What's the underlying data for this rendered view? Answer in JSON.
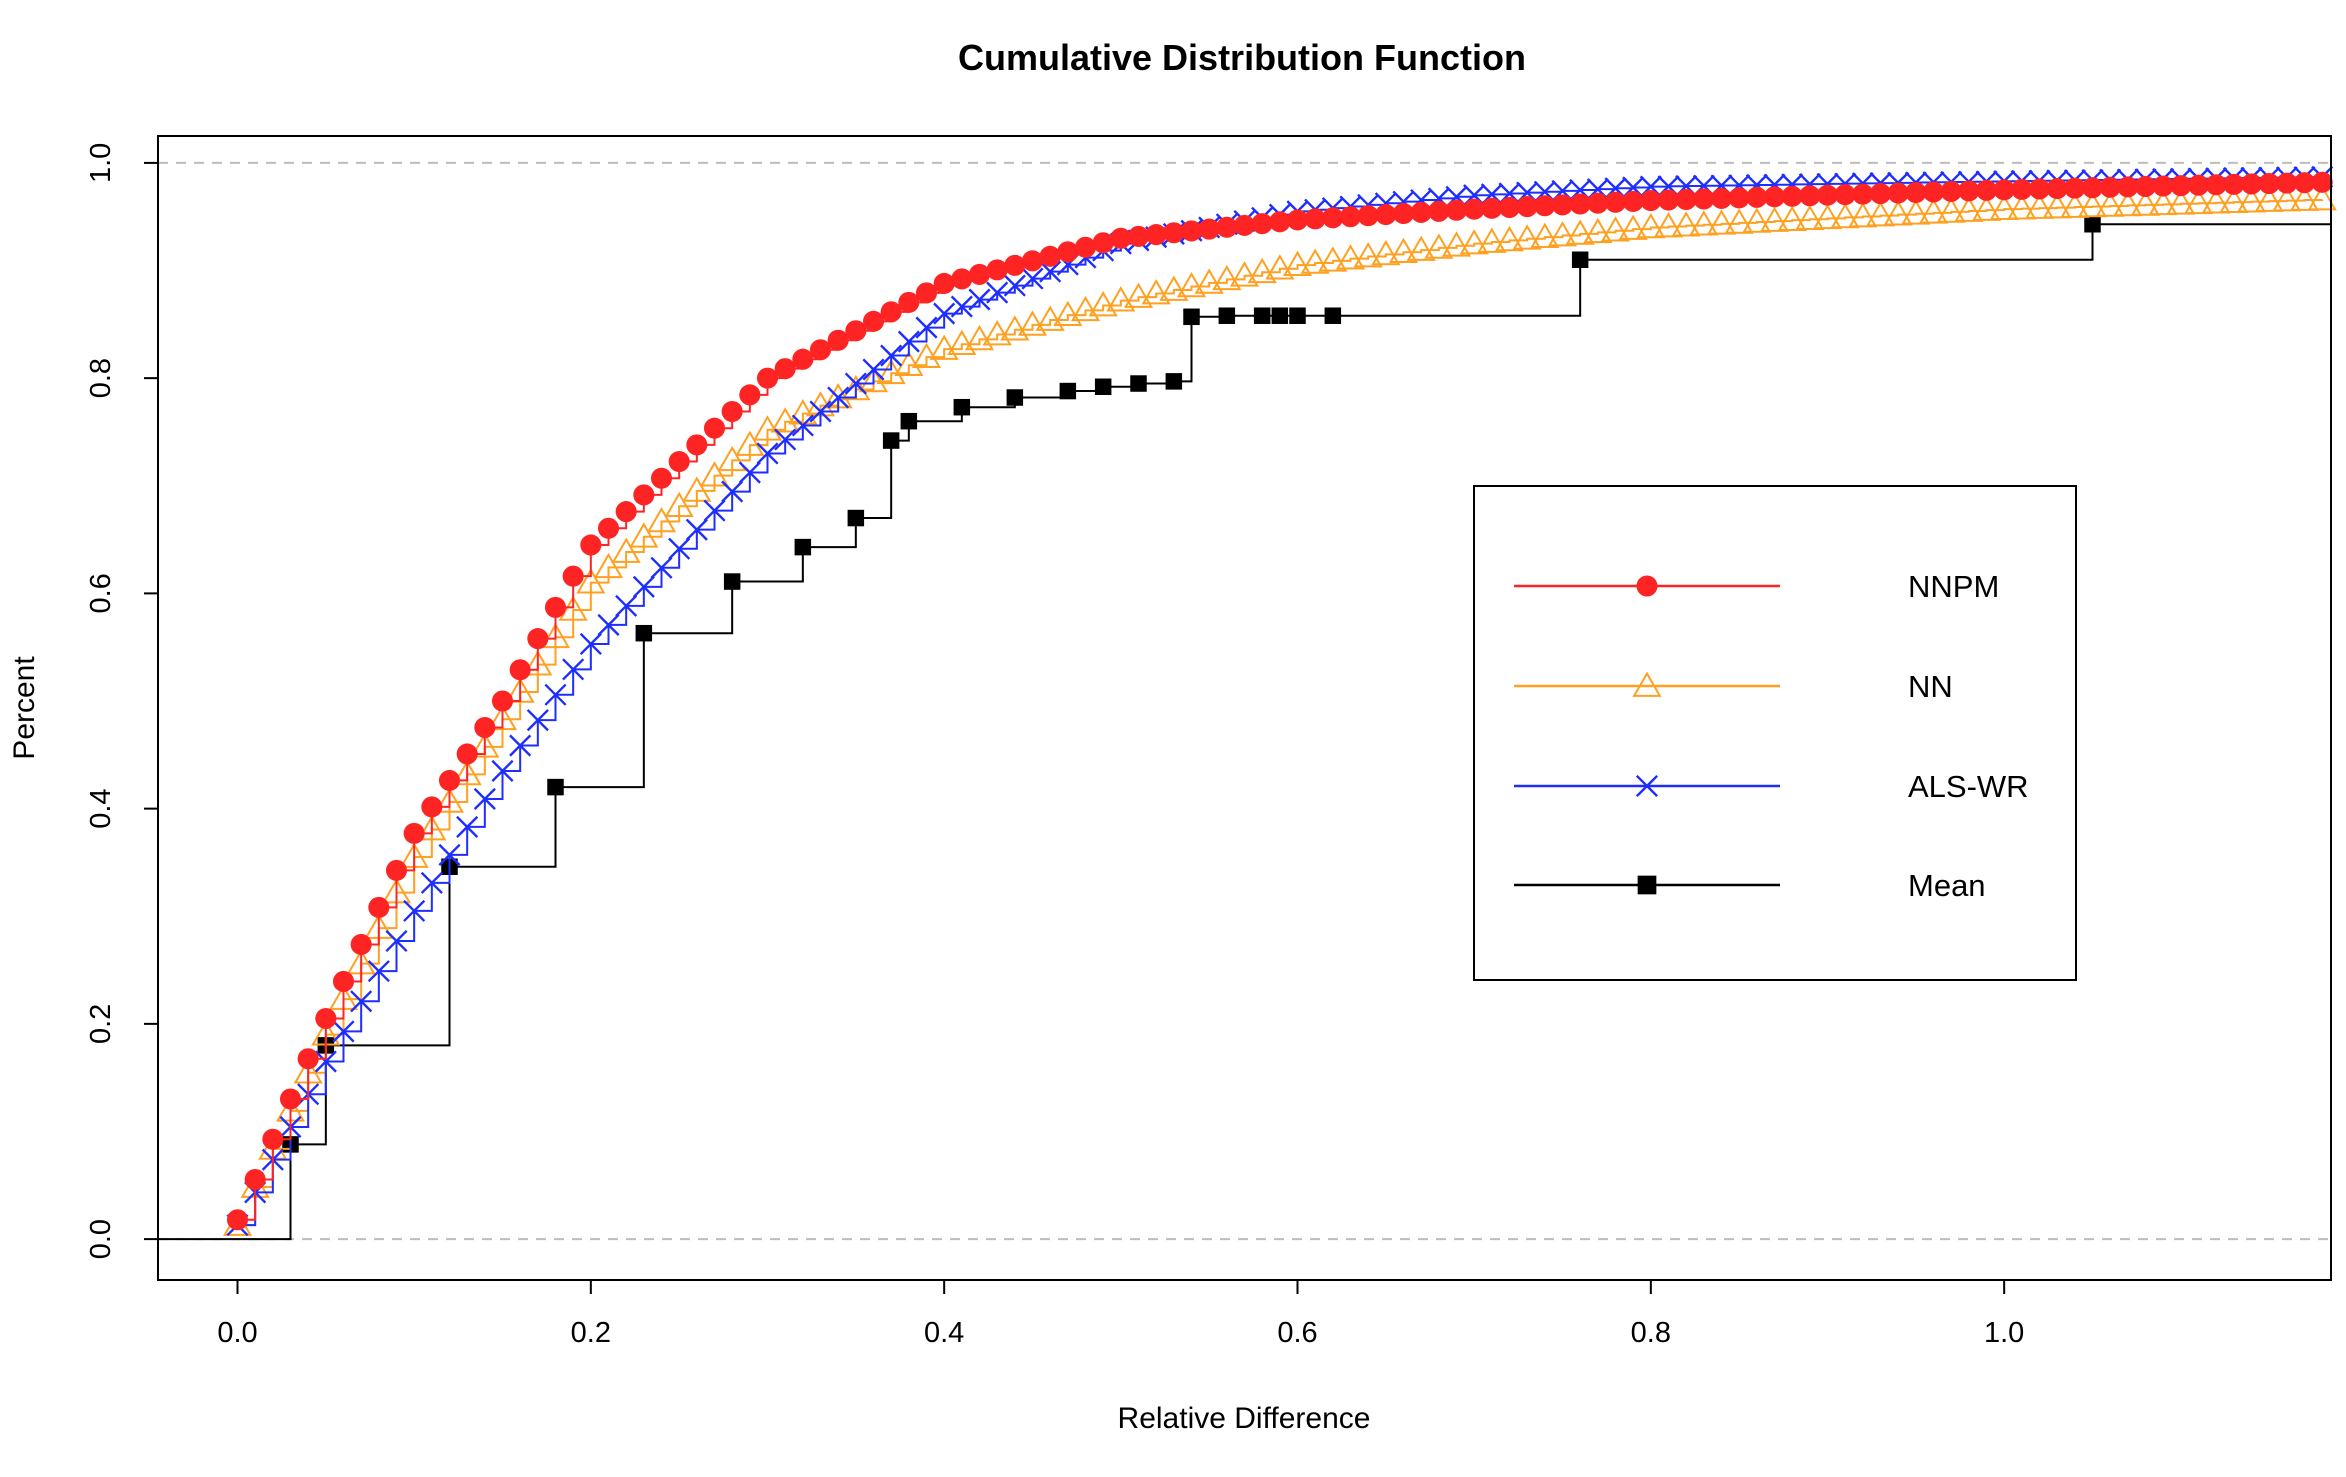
{
  "chart_data": {
    "type": "line",
    "title": "Cumulative Distribution Function",
    "xlabel": "Relative Difference",
    "ylabel": "Percent",
    "xlim": [
      -0.045,
      1.185
    ],
    "ylim": [
      -0.038,
      1.025
    ],
    "x_ticks": [
      0.0,
      0.2,
      0.4,
      0.6,
      0.8,
      1.0
    ],
    "x_tick_labels": [
      "0.0",
      "0.2",
      "0.4",
      "0.6",
      "0.8",
      "1.0"
    ],
    "y_ticks": [
      0.0,
      0.2,
      0.4,
      0.6,
      0.8,
      1.0
    ],
    "y_tick_labels": [
      "0.0",
      "0.2",
      "0.4",
      "0.6",
      "0.8",
      "1.0"
    ],
    "reference_lines_y": [
      0.0,
      1.0
    ],
    "grid": false,
    "legend": {
      "position": "right",
      "entries": [
        "NNPM",
        "NN",
        "ALS-WR",
        "Mean"
      ]
    },
    "series": [
      {
        "name": "NNPM",
        "color": "#ff2424",
        "marker": "filled-circle",
        "line_style": "step",
        "sampling": {
          "x_start": 0.0,
          "x_end": 1.18,
          "step": 0.01
        },
        "points": [
          [
            0.0,
            0.018
          ],
          [
            0.05,
            0.205
          ],
          [
            0.1,
            0.377
          ],
          [
            0.15,
            0.5
          ],
          [
            0.2,
            0.645
          ],
          [
            0.3,
            0.8
          ],
          [
            0.4,
            0.888
          ],
          [
            0.5,
            0.93
          ],
          [
            0.6,
            0.947
          ],
          [
            0.7,
            0.957
          ],
          [
            0.8,
            0.965
          ],
          [
            1.0,
            0.975
          ],
          [
            1.18,
            0.982
          ]
        ]
      },
      {
        "name": "NN",
        "color": "#ffa020",
        "marker": "open-triangle",
        "line_style": "step",
        "sampling": {
          "x_start": 0.0,
          "x_end": 1.18,
          "step": 0.01
        },
        "points": [
          [
            0.0,
            0.013
          ],
          [
            0.05,
            0.19
          ],
          [
            0.1,
            0.355
          ],
          [
            0.15,
            0.483
          ],
          [
            0.2,
            0.61
          ],
          [
            0.3,
            0.752
          ],
          [
            0.4,
            0.827
          ],
          [
            0.5,
            0.872
          ],
          [
            0.6,
            0.905
          ],
          [
            0.7,
            0.925
          ],
          [
            0.8,
            0.94
          ],
          [
            1.0,
            0.957
          ],
          [
            1.18,
            0.966
          ]
        ]
      },
      {
        "name": "ALS-WR",
        "color": "#1e2eff",
        "marker": "cross",
        "line_style": "step",
        "sampling": {
          "x_start": 0.0,
          "x_end": 1.18,
          "step": 0.01
        },
        "points": [
          [
            0.0,
            0.013
          ],
          [
            0.05,
            0.165
          ],
          [
            0.1,
            0.305
          ],
          [
            0.15,
            0.435
          ],
          [
            0.2,
            0.553
          ],
          [
            0.3,
            0.73
          ],
          [
            0.4,
            0.86
          ],
          [
            0.5,
            0.925
          ],
          [
            0.6,
            0.955
          ],
          [
            0.7,
            0.97
          ],
          [
            0.8,
            0.978
          ],
          [
            1.0,
            0.983
          ],
          [
            1.18,
            0.987
          ]
        ]
      },
      {
        "name": "Mean",
        "color": "#000000",
        "marker": "filled-square",
        "line_style": "step",
        "points": [
          [
            -0.045,
            0.0
          ],
          [
            0.03,
            0.088
          ],
          [
            0.05,
            0.18
          ],
          [
            0.12,
            0.346
          ],
          [
            0.18,
            0.42
          ],
          [
            0.23,
            0.563
          ],
          [
            0.28,
            0.611
          ],
          [
            0.32,
            0.643
          ],
          [
            0.35,
            0.67
          ],
          [
            0.37,
            0.742
          ],
          [
            0.38,
            0.76
          ],
          [
            0.41,
            0.773
          ],
          [
            0.44,
            0.782
          ],
          [
            0.47,
            0.788
          ],
          [
            0.49,
            0.792
          ],
          [
            0.51,
            0.795
          ],
          [
            0.53,
            0.797
          ],
          [
            0.54,
            0.857
          ],
          [
            0.56,
            0.858
          ],
          [
            0.58,
            0.858
          ],
          [
            0.59,
            0.858
          ],
          [
            0.6,
            0.858
          ],
          [
            0.62,
            0.858
          ],
          [
            0.76,
            0.91
          ],
          [
            1.05,
            0.943
          ],
          [
            1.185,
            0.943
          ]
        ],
        "marker_x": [
          0.03,
          0.05,
          0.12,
          0.18,
          0.23,
          0.28,
          0.32,
          0.35,
          0.37,
          0.38,
          0.41,
          0.44,
          0.47,
          0.49,
          0.51,
          0.53,
          0.54,
          0.56,
          0.58,
          0.59,
          0.6,
          0.62,
          0.76,
          1.05
        ]
      }
    ]
  }
}
